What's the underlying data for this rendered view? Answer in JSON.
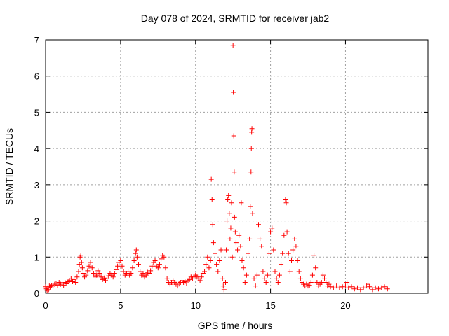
{
  "chart_data": {
    "type": "scatter",
    "title": "Day 078 of 2024, SRMTID for receiver jab2",
    "xlabel": "GPS time / hours",
    "ylabel": "SRMTID / TECUs",
    "xlim": [
      0,
      25.5
    ],
    "ylim": [
      0,
      7
    ],
    "xticks": [
      0,
      5,
      10,
      15,
      20
    ],
    "yticks": [
      0,
      1,
      2,
      3,
      4,
      5,
      6,
      7
    ],
    "grid": true,
    "marker": "+",
    "color": "#ff0000",
    "series": [
      {
        "name": "SRMTID",
        "points": [
          [
            0.0,
            0.18
          ],
          [
            0.05,
            0.12
          ],
          [
            0.1,
            0.08
          ],
          [
            0.15,
            0.15
          ],
          [
            0.2,
            0.1
          ],
          [
            0.25,
            0.2
          ],
          [
            0.3,
            0.18
          ],
          [
            0.4,
            0.22
          ],
          [
            0.5,
            0.2
          ],
          [
            0.6,
            0.25
          ],
          [
            0.7,
            0.28
          ],
          [
            0.8,
            0.22
          ],
          [
            0.9,
            0.3
          ],
          [
            1.0,
            0.25
          ],
          [
            1.1,
            0.28
          ],
          [
            1.2,
            0.22
          ],
          [
            1.3,
            0.3
          ],
          [
            1.4,
            0.26
          ],
          [
            1.5,
            0.32
          ],
          [
            1.6,
            0.35
          ],
          [
            1.7,
            0.4
          ],
          [
            1.8,
            0.32
          ],
          [
            1.9,
            0.38
          ],
          [
            2.0,
            0.3
          ],
          [
            2.1,
            0.45
          ],
          [
            2.2,
            0.6
          ],
          [
            2.25,
            0.8
          ],
          [
            2.3,
            1.0
          ],
          [
            2.35,
            1.05
          ],
          [
            2.4,
            0.85
          ],
          [
            2.45,
            0.7
          ],
          [
            2.5,
            0.55
          ],
          [
            2.6,
            0.45
          ],
          [
            2.7,
            0.5
          ],
          [
            2.8,
            0.62
          ],
          [
            2.9,
            0.75
          ],
          [
            3.0,
            0.85
          ],
          [
            3.1,
            0.7
          ],
          [
            3.2,
            0.55
          ],
          [
            3.3,
            0.45
          ],
          [
            3.4,
            0.5
          ],
          [
            3.5,
            0.62
          ],
          [
            3.6,
            0.55
          ],
          [
            3.7,
            0.45
          ],
          [
            3.8,
            0.38
          ],
          [
            3.9,
            0.42
          ],
          [
            4.0,
            0.35
          ],
          [
            4.1,
            0.4
          ],
          [
            4.2,
            0.48
          ],
          [
            4.3,
            0.55
          ],
          [
            4.4,
            0.5
          ],
          [
            4.5,
            0.45
          ],
          [
            4.6,
            0.55
          ],
          [
            4.7,
            0.65
          ],
          [
            4.8,
            0.75
          ],
          [
            4.9,
            0.85
          ],
          [
            5.0,
            0.9
          ],
          [
            5.1,
            0.75
          ],
          [
            5.2,
            0.6
          ],
          [
            5.3,
            0.5
          ],
          [
            5.4,
            0.55
          ],
          [
            5.5,
            0.6
          ],
          [
            5.6,
            0.5
          ],
          [
            5.7,
            0.55
          ],
          [
            5.8,
            0.7
          ],
          [
            5.9,
            0.9
          ],
          [
            6.0,
            1.1
          ],
          [
            6.05,
            1.2
          ],
          [
            6.1,
            1.0
          ],
          [
            6.2,
            0.8
          ],
          [
            6.3,
            0.6
          ],
          [
            6.4,
            0.5
          ],
          [
            6.5,
            0.55
          ],
          [
            6.6,
            0.45
          ],
          [
            6.7,
            0.5
          ],
          [
            6.8,
            0.58
          ],
          [
            6.9,
            0.55
          ],
          [
            7.0,
            0.62
          ],
          [
            7.1,
            0.75
          ],
          [
            7.2,
            0.85
          ],
          [
            7.3,
            0.9
          ],
          [
            7.4,
            0.75
          ],
          [
            7.5,
            0.7
          ],
          [
            7.6,
            0.8
          ],
          [
            7.7,
            0.95
          ],
          [
            7.8,
            1.05
          ],
          [
            7.9,
            1.0
          ],
          [
            8.0,
            0.7
          ],
          [
            8.1,
            0.4
          ],
          [
            8.2,
            0.3
          ],
          [
            8.3,
            0.25
          ],
          [
            8.4,
            0.3
          ],
          [
            8.5,
            0.35
          ],
          [
            8.6,
            0.3
          ],
          [
            8.7,
            0.25
          ],
          [
            8.8,
            0.2
          ],
          [
            8.9,
            0.28
          ],
          [
            9.0,
            0.3
          ],
          [
            9.1,
            0.35
          ],
          [
            9.2,
            0.3
          ],
          [
            9.3,
            0.32
          ],
          [
            9.4,
            0.28
          ],
          [
            9.5,
            0.35
          ],
          [
            9.6,
            0.38
          ],
          [
            9.7,
            0.45
          ],
          [
            9.8,
            0.4
          ],
          [
            9.9,
            0.45
          ],
          [
            10.0,
            0.5
          ],
          [
            10.1,
            0.45
          ],
          [
            10.2,
            0.4
          ],
          [
            10.3,
            0.35
          ],
          [
            10.4,
            0.45
          ],
          [
            10.5,
            0.55
          ],
          [
            10.6,
            0.6
          ],
          [
            10.7,
            0.8
          ],
          [
            10.8,
            1.0
          ],
          [
            10.9,
            0.7
          ],
          [
            11.0,
            0.9
          ],
          [
            11.05,
            3.15
          ],
          [
            11.1,
            2.6
          ],
          [
            11.15,
            1.9
          ],
          [
            11.2,
            1.4
          ],
          [
            11.3,
            1.1
          ],
          [
            11.4,
            0.8
          ],
          [
            11.5,
            0.6
          ],
          [
            11.6,
            0.9
          ],
          [
            11.7,
            1.2
          ],
          [
            11.8,
            0.4
          ],
          [
            11.85,
            0.2
          ],
          [
            11.9,
            0.1
          ],
          [
            12.0,
            0.3
          ],
          [
            12.05,
            1.2
          ],
          [
            12.1,
            2.0
          ],
          [
            12.15,
            2.6
          ],
          [
            12.2,
            2.7
          ],
          [
            12.25,
            2.2
          ],
          [
            12.3,
            1.5
          ],
          [
            12.35,
            1.8
          ],
          [
            12.4,
            2.5
          ],
          [
            12.45,
            1.0
          ],
          [
            12.5,
            6.85
          ],
          [
            12.52,
            5.55
          ],
          [
            12.55,
            4.35
          ],
          [
            12.58,
            3.35
          ],
          [
            12.6,
            2.1
          ],
          [
            12.65,
            1.7
          ],
          [
            12.7,
            1.4
          ],
          [
            12.8,
            1.2
          ],
          [
            12.9,
            1.6
          ],
          [
            13.0,
            1.3
          ],
          [
            13.05,
            2.5
          ],
          [
            13.1,
            0.9
          ],
          [
            13.2,
            0.7
          ],
          [
            13.3,
            0.3
          ],
          [
            13.4,
            0.5
          ],
          [
            13.5,
            1.1
          ],
          [
            13.6,
            1.5
          ],
          [
            13.65,
            2.4
          ],
          [
            13.7,
            3.35
          ],
          [
            13.72,
            4.0
          ],
          [
            13.74,
            4.45
          ],
          [
            13.76,
            4.55
          ],
          [
            13.8,
            2.2
          ],
          [
            13.9,
            0.4
          ],
          [
            14.0,
            0.2
          ],
          [
            14.1,
            0.5
          ],
          [
            14.2,
            1.9
          ],
          [
            14.3,
            1.5
          ],
          [
            14.4,
            1.3
          ],
          [
            14.5,
            0.6
          ],
          [
            14.6,
            0.4
          ],
          [
            14.7,
            0.3
          ],
          [
            14.8,
            0.5
          ],
          [
            14.9,
            1.1
          ],
          [
            15.0,
            1.7
          ],
          [
            15.1,
            1.8
          ],
          [
            15.2,
            1.2
          ],
          [
            15.3,
            0.6
          ],
          [
            15.4,
            0.4
          ],
          [
            15.5,
            0.3
          ],
          [
            15.6,
            0.5
          ],
          [
            15.7,
            0.8
          ],
          [
            15.8,
            1.1
          ],
          [
            15.9,
            1.6
          ],
          [
            16.0,
            2.6
          ],
          [
            16.05,
            2.5
          ],
          [
            16.1,
            1.7
          ],
          [
            16.2,
            1.1
          ],
          [
            16.3,
            0.6
          ],
          [
            16.4,
            0.9
          ],
          [
            16.5,
            1.2
          ],
          [
            16.6,
            1.5
          ],
          [
            16.7,
            1.3
          ],
          [
            16.8,
            0.9
          ],
          [
            16.9,
            0.6
          ],
          [
            17.0,
            0.4
          ],
          [
            17.1,
            0.3
          ],
          [
            17.2,
            0.25
          ],
          [
            17.3,
            0.2
          ],
          [
            17.4,
            0.25
          ],
          [
            17.5,
            0.2
          ],
          [
            17.6,
            0.22
          ],
          [
            17.7,
            0.3
          ],
          [
            17.8,
            0.5
          ],
          [
            17.9,
            1.05
          ],
          [
            18.0,
            0.7
          ],
          [
            18.1,
            0.3
          ],
          [
            18.2,
            0.2
          ],
          [
            18.3,
            0.25
          ],
          [
            18.4,
            0.3
          ],
          [
            18.5,
            0.5
          ],
          [
            18.6,
            0.4
          ],
          [
            18.7,
            0.3
          ],
          [
            18.8,
            0.2
          ],
          [
            18.9,
            0.25
          ],
          [
            19.0,
            0.18
          ],
          [
            19.2,
            0.15
          ],
          [
            19.4,
            0.2
          ],
          [
            19.6,
            0.15
          ],
          [
            19.8,
            0.18
          ],
          [
            20.0,
            0.2
          ],
          [
            20.1,
            0.3
          ],
          [
            20.2,
            0.15
          ],
          [
            20.4,
            0.18
          ],
          [
            20.6,
            0.12
          ],
          [
            20.8,
            0.15
          ],
          [
            21.0,
            0.1
          ],
          [
            21.2,
            0.15
          ],
          [
            21.4,
            0.2
          ],
          [
            21.5,
            0.25
          ],
          [
            21.6,
            0.18
          ],
          [
            21.8,
            0.1
          ],
          [
            22.0,
            0.15
          ],
          [
            22.2,
            0.12
          ],
          [
            22.4,
            0.15
          ],
          [
            22.6,
            0.18
          ],
          [
            22.8,
            0.12
          ]
        ]
      }
    ]
  }
}
